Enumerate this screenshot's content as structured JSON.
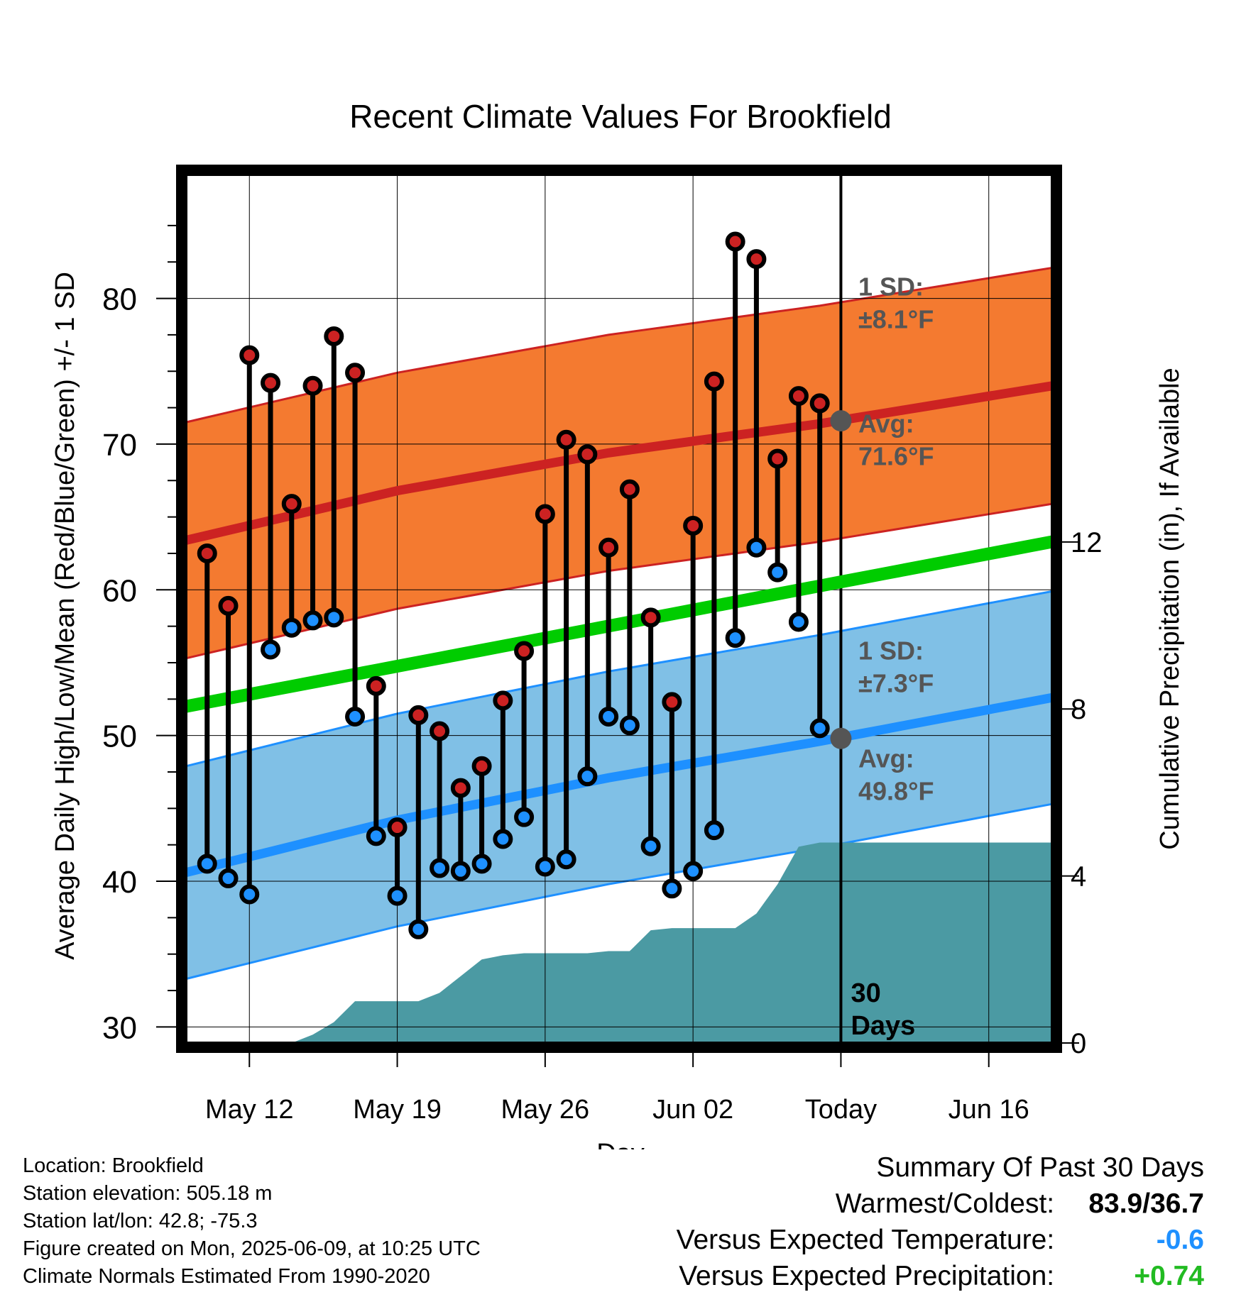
{
  "title": "Recent Climate Values For Brookfield",
  "chart_data": {
    "type": "line",
    "title": "Recent Climate Values For Brookfield",
    "xlabel": "Day",
    "ylabel": "Average Daily High/Low/Mean (Red/Blue/Green) +/- 1 SD",
    "y2label": "Cumulative Precipitation (in), If Available",
    "x_tick_labels": [
      "May 12",
      "May 19",
      "May 26",
      "Jun 02",
      "Today",
      "Jun 16"
    ],
    "x_ticks": [
      "2025-05-12",
      "2025-05-19",
      "2025-05-26",
      "2025-06-02",
      "2025-06-09",
      "2025-06-16"
    ],
    "xlim": [
      "2025-05-09",
      "2025-06-19"
    ],
    "today": "2025-06-09",
    "today_label": "30\nDays",
    "y_ticks": [
      30,
      40,
      50,
      60,
      70,
      80
    ],
    "ylim": [
      28.9,
      88.5
    ],
    "y2_ticks": [
      0,
      4,
      8,
      12
    ],
    "y2lim": [
      0,
      20.8
    ],
    "grid": true,
    "dates": [
      "2025-05-10",
      "2025-05-11",
      "2025-05-12",
      "2025-05-13",
      "2025-05-14",
      "2025-05-15",
      "2025-05-16",
      "2025-05-17",
      "2025-05-18",
      "2025-05-19",
      "2025-05-20",
      "2025-05-21",
      "2025-05-22",
      "2025-05-23",
      "2025-05-24",
      "2025-05-25",
      "2025-05-26",
      "2025-05-27",
      "2025-05-28",
      "2025-05-29",
      "2025-05-30",
      "2025-05-31",
      "2025-06-01",
      "2025-06-02",
      "2025-06-03",
      "2025-06-04",
      "2025-06-05",
      "2025-06-06",
      "2025-06-07",
      "2025-06-08"
    ],
    "highs": [
      62.5,
      58.9,
      76.1,
      74.2,
      65.9,
      74.0,
      77.4,
      74.9,
      53.4,
      43.7,
      51.4,
      50.3,
      46.4,
      47.9,
      52.4,
      55.8,
      65.2,
      70.3,
      69.3,
      62.9,
      66.9,
      58.1,
      52.3,
      64.4,
      74.3,
      83.9,
      82.7,
      69.0,
      73.3,
      72.8
    ],
    "lows": [
      41.2,
      40.2,
      39.1,
      55.9,
      57.4,
      57.9,
      58.1,
      51.3,
      43.1,
      39.0,
      36.7,
      40.9,
      40.7,
      41.2,
      42.9,
      44.4,
      41.0,
      41.5,
      47.2,
      51.3,
      50.7,
      42.4,
      39.5,
      40.7,
      43.5,
      56.7,
      62.9,
      61.2,
      57.8,
      50.5
    ],
    "normal_high": {
      "x": [
        "2025-05-09",
        "2025-05-19",
        "2025-05-29",
        "2025-06-08",
        "2025-06-19"
      ],
      "values": [
        63.4,
        66.8,
        69.4,
        71.4,
        74.0
      ]
    },
    "normal_high_sd": 8.1,
    "normal_low": {
      "x": [
        "2025-05-09",
        "2025-05-19",
        "2025-05-29",
        "2025-06-08",
        "2025-06-19"
      ],
      "values": [
        40.6,
        44.2,
        47.1,
        49.6,
        52.6
      ]
    },
    "normal_low_sd": 7.3,
    "normal_mean": {
      "x": [
        "2025-05-09",
        "2025-06-19"
      ],
      "values": [
        52.0,
        63.3
      ]
    },
    "precip": {
      "x": [
        "2025-05-09",
        "2025-05-14",
        "2025-05-15",
        "2025-05-16",
        "2025-05-17",
        "2025-05-18",
        "2025-05-19",
        "2025-05-20",
        "2025-05-21",
        "2025-05-22",
        "2025-05-23",
        "2025-05-24",
        "2025-05-25",
        "2025-05-26",
        "2025-05-27",
        "2025-05-28",
        "2025-05-29",
        "2025-05-30",
        "2025-05-31",
        "2025-06-01",
        "2025-06-02",
        "2025-06-03",
        "2025-06-04",
        "2025-06-05",
        "2025-06-06",
        "2025-06-07",
        "2025-06-08",
        "2025-06-19"
      ],
      "values": [
        0,
        0,
        0.2,
        0.5,
        1.0,
        1.0,
        1.0,
        1.0,
        1.2,
        1.6,
        2.0,
        2.1,
        2.15,
        2.15,
        2.15,
        2.15,
        2.2,
        2.2,
        2.7,
        2.75,
        2.75,
        2.75,
        2.75,
        3.1,
        3.8,
        4.7,
        4.8,
        4.8
      ]
    },
    "annotations": [
      {
        "label": "1 SD:",
        "value": "±8.1°F"
      },
      {
        "label": "Avg:",
        "value": "71.6°F"
      },
      {
        "label": "1 SD:",
        "value": "±7.3°F"
      },
      {
        "label": "Avg:",
        "value": "49.8°F"
      }
    ],
    "today_markers": [
      71.6,
      49.8
    ],
    "colors": {
      "high": "#cc2222",
      "low": "#1e90ff",
      "mean": "#00cc00",
      "high_band": "#f47a30",
      "low_band": "#80c0e6",
      "precip": "#4b9aa3",
      "annotation": "#555555"
    }
  },
  "info": {
    "location": "Location: Brookfield",
    "elevation": "Station elevation: 505.18 m",
    "latlon": "Station lat/lon: 42.8; -75.3",
    "created": "Figure created on Mon, 2025-06-09, at 10:25 UTC",
    "normals": "Climate Normals Estimated From 1990-2020"
  },
  "summary": {
    "title": "Summary Of Past 30 Days",
    "warm_label": "Warmest/Coldest:",
    "warm_value": "83.9/36.7",
    "temp_label": "Versus Expected Temperature:",
    "temp_value": "-0.6",
    "precip_label": "Versus Expected Precipitation:",
    "precip_value": "+0.74"
  }
}
